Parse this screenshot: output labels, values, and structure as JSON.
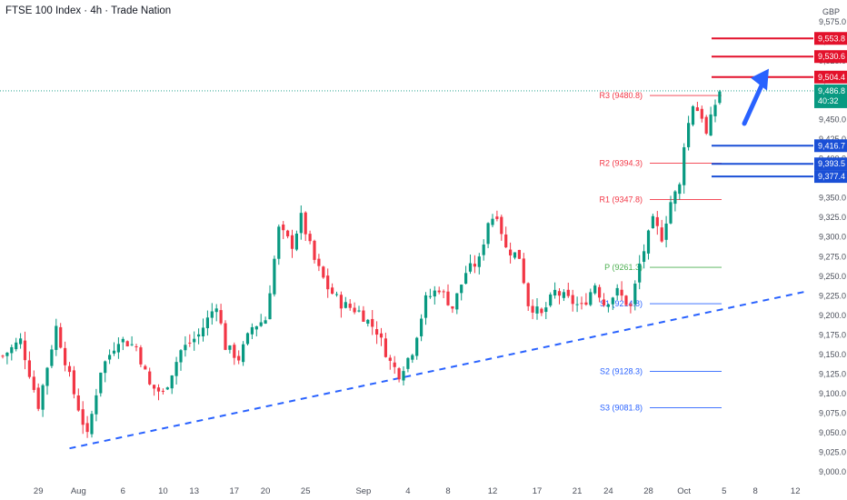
{
  "header": {
    "title": "FTSE 100 Index · 4h · Trade Nation"
  },
  "chart_data": {
    "type": "candlestick",
    "currency": "GBP",
    "ylim": [
      9000,
      9575
    ],
    "y_ticks": [
      "9,575.0",
      "9,550.0",
      "9,525.0",
      "9,500.0",
      "9,475.0",
      "9,450.0",
      "9,425.0",
      "9,400.0",
      "9,375.0",
      "9,350.0",
      "9,325.0",
      "9,300.0",
      "9,275.0",
      "9,250.0",
      "9,225.0",
      "9,200.0",
      "9,175.0",
      "9,150.0",
      "9,125.0",
      "9,100.0",
      "9,075.0",
      "9,050.0",
      "9,025.0",
      "9,000.0"
    ],
    "x_ticks": [
      {
        "label": "29",
        "i": 8
      },
      {
        "label": "Aug",
        "i": 17
      },
      {
        "label": "6",
        "i": 27
      },
      {
        "label": "10",
        "i": 36
      },
      {
        "label": "13",
        "i": 43
      },
      {
        "label": "17",
        "i": 52
      },
      {
        "label": "20",
        "i": 59
      },
      {
        "label": "25",
        "i": 68
      },
      {
        "label": "Sep",
        "i": 81
      },
      {
        "label": "4",
        "i": 91
      },
      {
        "label": "8",
        "i": 100
      },
      {
        "label": "12",
        "i": 110
      },
      {
        "label": "17",
        "i": 120
      },
      {
        "label": "21",
        "i": 129
      },
      {
        "label": "24",
        "i": 136
      },
      {
        "label": "28",
        "i": 145
      },
      {
        "label": "Oct",
        "i": 153
      },
      {
        "label": "5",
        "i": 162
      },
      {
        "label": "8",
        "i": 169
      },
      {
        "label": "12",
        "i": 178
      }
    ],
    "candles_total": 182,
    "candle_anchors": [
      [
        0,
        9148
      ],
      [
        4,
        9168
      ],
      [
        8,
        9085
      ],
      [
        12,
        9185
      ],
      [
        16,
        9100
      ],
      [
        19,
        9045
      ],
      [
        22,
        9130
      ],
      [
        26,
        9170
      ],
      [
        30,
        9160
      ],
      [
        33,
        9110
      ],
      [
        36,
        9100
      ],
      [
        40,
        9155
      ],
      [
        44,
        9175
      ],
      [
        48,
        9215
      ],
      [
        50,
        9160
      ],
      [
        53,
        9145
      ],
      [
        56,
        9185
      ],
      [
        59,
        9195
      ],
      [
        62,
        9310
      ],
      [
        65,
        9290
      ],
      [
        67,
        9325
      ],
      [
        70,
        9270
      ],
      [
        73,
        9235
      ],
      [
        76,
        9215
      ],
      [
        80,
        9205
      ],
      [
        84,
        9180
      ],
      [
        87,
        9140
      ],
      [
        89,
        9125
      ],
      [
        92,
        9155
      ],
      [
        95,
        9220
      ],
      [
        98,
        9235
      ],
      [
        101,
        9210
      ],
      [
        104,
        9255
      ],
      [
        107,
        9270
      ],
      [
        109,
        9320
      ],
      [
        111,
        9330
      ],
      [
        113,
        9285
      ],
      [
        116,
        9275
      ],
      [
        118,
        9215
      ],
      [
        121,
        9200
      ],
      [
        124,
        9230
      ],
      [
        127,
        9220
      ],
      [
        130,
        9210
      ],
      [
        133,
        9240
      ],
      [
        135,
        9215
      ],
      [
        138,
        9230
      ],
      [
        141,
        9210
      ],
      [
        143,
        9265
      ],
      [
        146,
        9320
      ],
      [
        148,
        9300
      ],
      [
        150,
        9345
      ],
      [
        152,
        9365
      ],
      [
        153,
        9420
      ],
      [
        155,
        9470
      ],
      [
        157,
        9455
      ],
      [
        158,
        9430
      ],
      [
        160,
        9470
      ],
      [
        161,
        9487
      ]
    ],
    "last_price": 9486.8,
    "countdown": "40:32",
    "pivots": [
      {
        "name": "R3",
        "label": "R3 (9480.8)",
        "value": 9480.8,
        "color": "#f23645"
      },
      {
        "name": "R2",
        "label": "R2 (9394.3)",
        "value": 9394.3,
        "color": "#f23645"
      },
      {
        "name": "R1",
        "label": "R1 (9347.8)",
        "value": 9347.8,
        "color": "#f23645"
      },
      {
        "name": "P",
        "label": "P (9261.3)",
        "value": 9261.3,
        "color": "#4caf50"
      },
      {
        "name": "S1",
        "label": "S1 (9214.8)",
        "value": 9214.8,
        "color": "#2962ff"
      },
      {
        "name": "S2",
        "label": "S2 (9128.3)",
        "value": 9128.3,
        "color": "#2962ff"
      },
      {
        "name": "S3",
        "label": "S3 (9081.8)",
        "value": 9081.8,
        "color": "#2962ff"
      }
    ],
    "resistance_levels": [
      9553.8,
      9530.6,
      9504.4
    ],
    "support_levels": [
      9416.7,
      9393.5,
      9377.4
    ],
    "resistance_labels": [
      "9,553.8",
      "9,530.6",
      "9,504.4"
    ],
    "support_labels": [
      "9,416.7",
      "9,393.5",
      "9,377.4"
    ],
    "last_label": "9,486.8",
    "trendline": {
      "from": [
        15,
        9030
      ],
      "to": [
        178,
        9230
      ]
    },
    "arrow": {
      "from": [
        160,
        9445
      ],
      "to": [
        170,
        9515
      ]
    },
    "colors": {
      "up": "#089981",
      "down": "#f23645",
      "resistance": "#e3112b",
      "support": "#1a4fd6",
      "trend": "#2962ff",
      "arrow": "#2962ff",
      "last": "#089981"
    }
  }
}
